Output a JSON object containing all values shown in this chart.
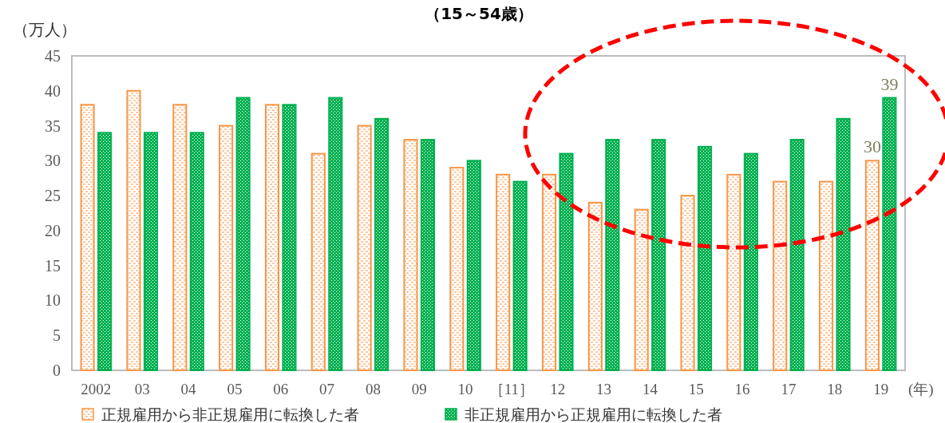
{
  "chart_data": {
    "type": "bar",
    "title": "（15～54歳）",
    "ylabel": "（万人）",
    "xlabel": "(年)",
    "categories": [
      "2002",
      "03",
      "04",
      "05",
      "06",
      "07",
      "08",
      "09",
      "10",
      "［11］",
      "12",
      "13",
      "14",
      "15",
      "16",
      "17",
      "18",
      "19"
    ],
    "series": [
      {
        "name": "正規雇用から非正規雇用に転換した者",
        "color": "#f79646",
        "values": [
          38,
          40,
          38,
          35,
          38,
          31,
          35,
          33,
          29,
          28,
          28,
          24,
          23,
          25,
          28,
          27,
          27,
          30
        ],
        "value_labels": [
          null,
          null,
          null,
          null,
          null,
          null,
          null,
          null,
          null,
          null,
          null,
          null,
          null,
          null,
          null,
          null,
          null,
          "30"
        ]
      },
      {
        "name": "非正規雇用から正規雇用に転換した者",
        "color": "#00b050",
        "values": [
          34,
          34,
          34,
          39,
          38,
          39,
          36,
          33,
          30,
          27,
          31,
          33,
          33,
          32,
          31,
          33,
          36,
          39
        ],
        "value_labels": [
          null,
          null,
          null,
          null,
          null,
          null,
          null,
          null,
          null,
          null,
          null,
          null,
          null,
          null,
          null,
          null,
          null,
          "39"
        ]
      }
    ],
    "ylim": [
      0,
      45
    ],
    "yticks": [
      0,
      5,
      10,
      15,
      20,
      25,
      30,
      35,
      40,
      45
    ],
    "grid": false,
    "legend": "bottom"
  }
}
